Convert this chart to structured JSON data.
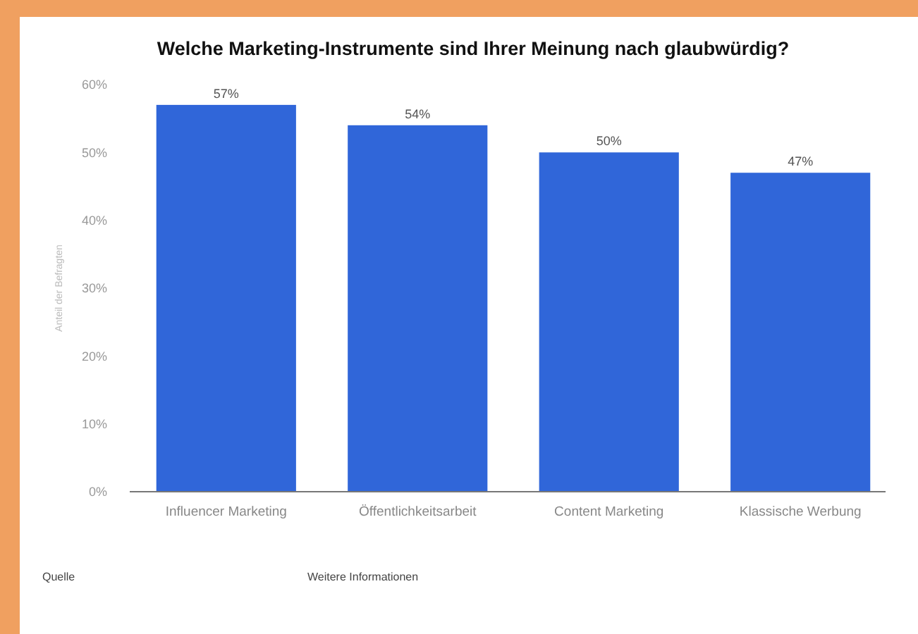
{
  "chart_data": {
    "type": "bar",
    "title": "Welche Marketing-Instrumente sind Ihrer Meinung nach glaubwürdig?",
    "ylabel": "Anteil der Befragten",
    "categories": [
      "Influencer Marketing",
      "Öffentlichkeitsarbeit",
      "Content Marketing",
      "Klassische Werbung"
    ],
    "values": [
      57,
      54,
      50,
      47
    ],
    "color": "#3066d9",
    "value_labels": [
      "57%",
      "54%",
      "50%",
      "47%"
    ],
    "ylim": [
      0,
      60
    ],
    "yticks": [
      {
        "value": 0,
        "label": "0%"
      },
      {
        "value": 10,
        "label": "10%"
      },
      {
        "value": 20,
        "label": "20%"
      },
      {
        "value": 30,
        "label": "30%"
      },
      {
        "value": 40,
        "label": "40%"
      },
      {
        "value": 50,
        "label": "50%"
      },
      {
        "value": 60,
        "label": "60%"
      }
    ],
    "grid": false,
    "annotations": [
      "Quelle",
      "Weitere Informationen"
    ]
  }
}
